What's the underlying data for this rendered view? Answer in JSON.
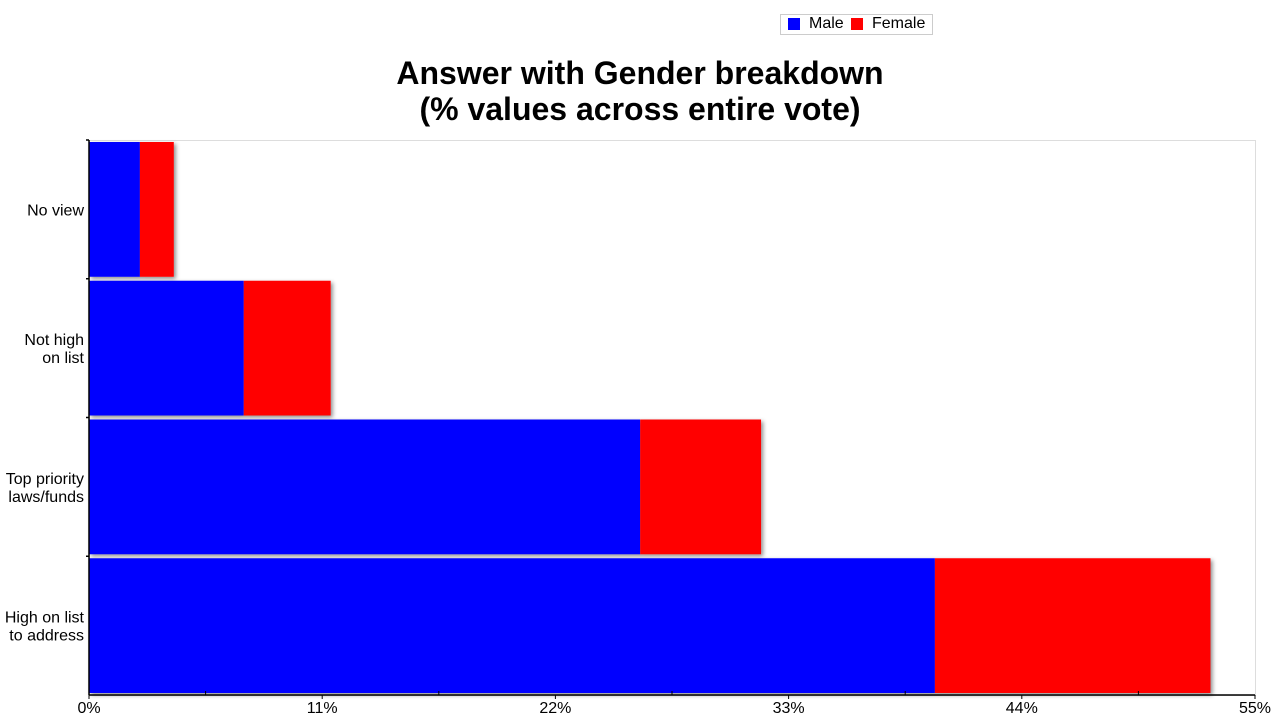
{
  "chart_data": {
    "type": "bar",
    "orientation": "horizontal",
    "stacked": true,
    "title_lines": [
      "Answer with Gender breakdown",
      "(% values across entire vote)"
    ],
    "categories": [
      [
        "No view"
      ],
      [
        "Not high",
        "on list"
      ],
      [
        "Top priority",
        "laws/funds"
      ],
      [
        "High on list",
        "to address"
      ]
    ],
    "series": [
      {
        "name": "Male",
        "color": "#0000ff",
        "values": [
          2.4,
          7.3,
          26.0,
          39.9
        ]
      },
      {
        "name": "Female",
        "color": "#ff0000",
        "values": [
          1.6,
          4.1,
          5.7,
          13.0
        ]
      }
    ],
    "x_ticks": [
      "0%",
      "11%",
      "22%",
      "33%",
      "44%",
      "55%"
    ],
    "x_tick_values": [
      0,
      11,
      22,
      33,
      44,
      55
    ],
    "xlim": [
      0,
      55
    ],
    "legend": {
      "position": "top-right"
    },
    "grid": false
  }
}
